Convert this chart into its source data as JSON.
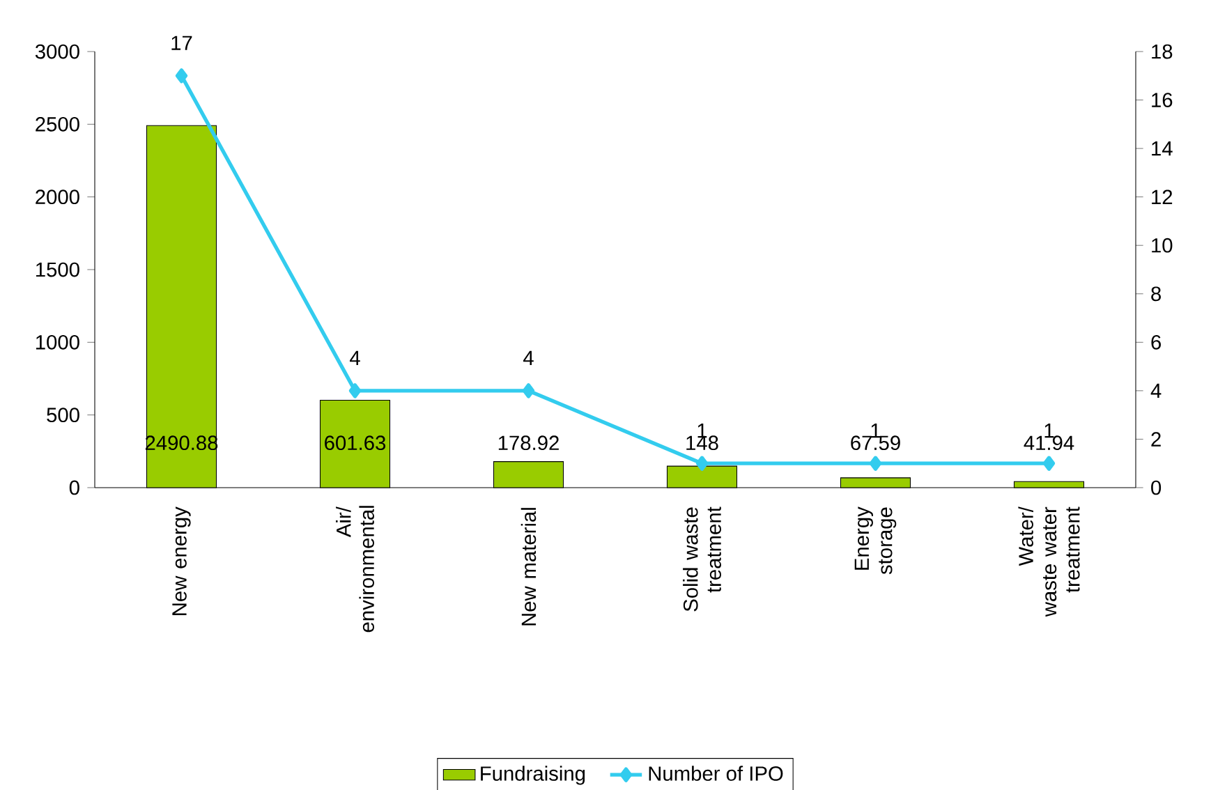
{
  "chart_data": {
    "type": "bar",
    "categories": [
      "New energy",
      "Air/ environmental",
      "New material",
      "Solid waste treatment",
      "Energy storage",
      "Water/ waste water treatment"
    ],
    "series": [
      {
        "name": "Fundraising",
        "color": "#99cc00",
        "values": [
          2490.88,
          601.63,
          178.92,
          148,
          67.59,
          41.94
        ],
        "value_labels": [
          "2490.88",
          "601.63",
          "178.92",
          "148",
          "67.59",
          "41.94"
        ]
      },
      {
        "name": "Number of IPO",
        "type": "line",
        "axis": "y2",
        "color": "#33ccee",
        "marker": "diamond",
        "values": [
          17,
          4,
          4,
          1,
          1,
          1
        ],
        "value_labels": [
          "17",
          "4",
          "4",
          "1",
          "1",
          "1"
        ]
      }
    ],
    "ylim": [
      0,
      3000
    ],
    "yticks": [
      0,
      500,
      1000,
      1500,
      2000,
      2500,
      3000
    ],
    "y2lim": [
      0,
      18
    ],
    "y2ticks": [
      0,
      2,
      4,
      6,
      8,
      10,
      12,
      14,
      16,
      18
    ],
    "legend": "bottom"
  }
}
